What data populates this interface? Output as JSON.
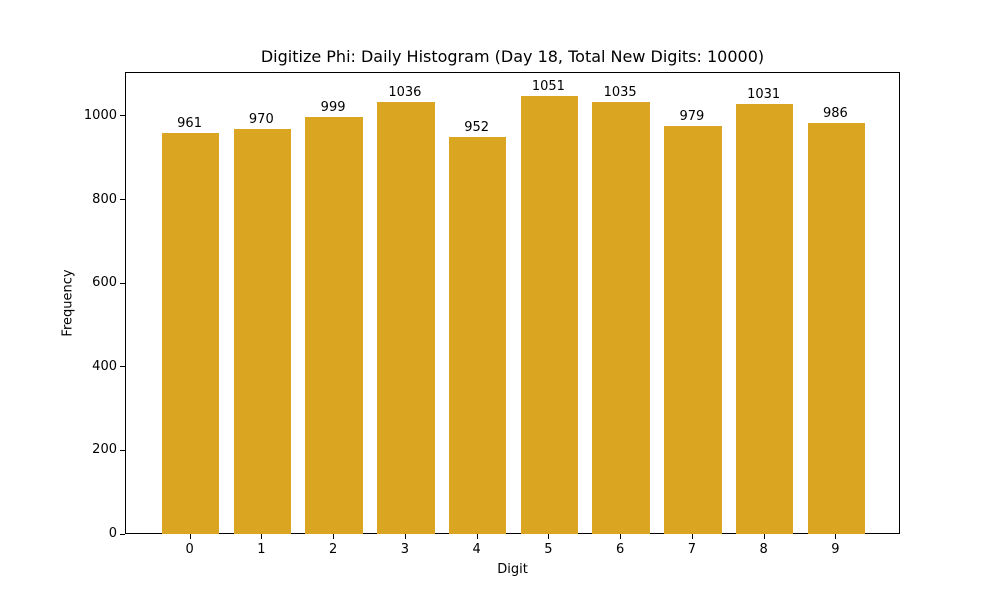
{
  "chart_data": {
    "type": "bar",
    "title": "Digitize Phi: Daily Histogram (Day 18, Total New Digits: 10000)",
    "xlabel": "Digit",
    "ylabel": "Frequency",
    "categories": [
      "0",
      "1",
      "2",
      "3",
      "4",
      "5",
      "6",
      "7",
      "8",
      "9"
    ],
    "values": [
      961,
      970,
      999,
      1036,
      952,
      1051,
      1035,
      979,
      1031,
      986
    ],
    "data_labels": [
      "961",
      "970",
      "999",
      "1036",
      "952",
      "1051",
      "1035",
      "979",
      "1031",
      "986"
    ],
    "yticks": [
      0,
      200,
      400,
      600,
      800,
      1000
    ],
    "ytick_labels": [
      "0",
      "200",
      "400",
      "600",
      "800",
      "1000"
    ],
    "ylim": [
      0,
      1105
    ],
    "xlim": [
      -0.9,
      9.9
    ],
    "bar_color": "#DAA520",
    "grid": false,
    "legend": null
  }
}
